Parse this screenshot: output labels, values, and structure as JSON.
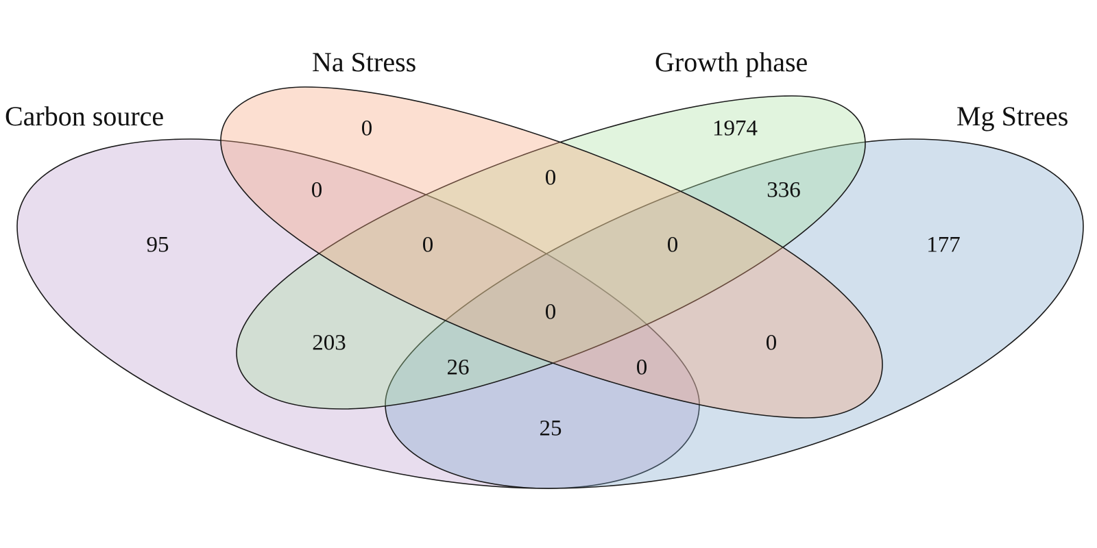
{
  "diagram": {
    "type": "venn-4",
    "sets": [
      {
        "key": "carbon",
        "label": "Carbon source",
        "color": "#b28fc6"
      },
      {
        "key": "na",
        "label": "Na Stress",
        "color": "#f7a27a"
      },
      {
        "key": "growth",
        "label": "Growth phase",
        "color": "#a8e0a0"
      },
      {
        "key": "mg",
        "label": "Mg Strees",
        "color": "#7fa6cc"
      }
    ],
    "regions": [
      {
        "sets": [
          "carbon"
        ],
        "count": "95"
      },
      {
        "sets": [
          "na"
        ],
        "count": "0"
      },
      {
        "sets": [
          "growth"
        ],
        "count": "1974"
      },
      {
        "sets": [
          "mg"
        ],
        "count": "177"
      },
      {
        "sets": [
          "carbon",
          "na"
        ],
        "count": "0"
      },
      {
        "sets": [
          "na",
          "growth"
        ],
        "count": "0"
      },
      {
        "sets": [
          "growth",
          "mg"
        ],
        "count": "336"
      },
      {
        "sets": [
          "carbon",
          "growth"
        ],
        "count": "203"
      },
      {
        "sets": [
          "na",
          "mg"
        ],
        "count": "0"
      },
      {
        "sets": [
          "carbon",
          "mg"
        ],
        "count": "25"
      },
      {
        "sets": [
          "carbon",
          "na",
          "growth"
        ],
        "count": "0"
      },
      {
        "sets": [
          "na",
          "growth",
          "mg"
        ],
        "count": "0"
      },
      {
        "sets": [
          "carbon",
          "growth",
          "mg"
        ],
        "count": "26"
      },
      {
        "sets": [
          "carbon",
          "na",
          "mg"
        ],
        "count": "0"
      },
      {
        "sets": [
          "carbon",
          "na",
          "growth",
          "mg"
        ],
        "count": "0"
      }
    ]
  }
}
